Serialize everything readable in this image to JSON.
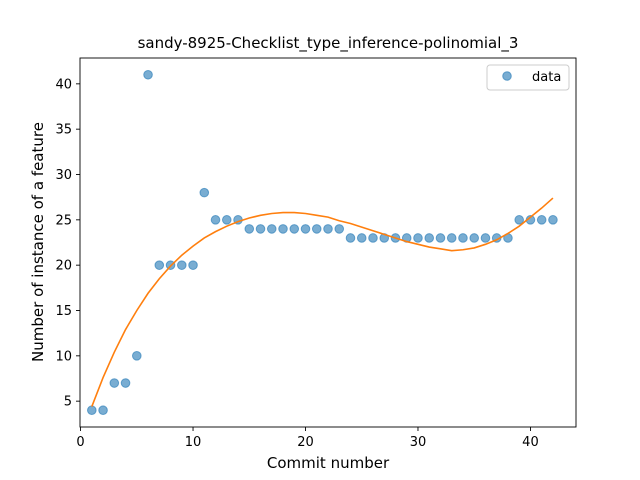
{
  "chart_data": {
    "type": "scatter",
    "title": "sandy-8925-Checklist_type_inference-polinomial_3",
    "xlabel": "Commit number",
    "ylabel": "Number of instance of a feature",
    "xlim": [
      -0.05,
      44.05
    ],
    "ylim": [
      2.15,
      42.85
    ],
    "xticks": [
      0,
      10,
      20,
      30,
      40
    ],
    "yticks": [
      5,
      10,
      15,
      20,
      25,
      30,
      35,
      40
    ],
    "grid": false,
    "legend": {
      "placement": "top-right",
      "entries": [
        "data"
      ]
    },
    "series": [
      {
        "name": "data",
        "type": "scatter",
        "color": "#1f77b4",
        "x": [
          1,
          2,
          3,
          4,
          5,
          6,
          7,
          8,
          9,
          10,
          11,
          12,
          13,
          14,
          15,
          16,
          17,
          18,
          19,
          20,
          21,
          22,
          23,
          24,
          25,
          26,
          27,
          28,
          29,
          30,
          31,
          32,
          33,
          34,
          35,
          36,
          37,
          38,
          39,
          40,
          41,
          42
        ],
        "y": [
          4,
          4,
          7,
          7,
          10,
          41,
          20,
          20,
          20,
          20,
          28,
          25,
          25,
          25,
          24,
          24,
          24,
          24,
          24,
          24,
          24,
          24,
          24,
          23,
          23,
          23,
          23,
          23,
          23,
          23,
          23,
          23,
          23,
          23,
          23,
          23,
          23,
          23,
          25,
          25,
          25,
          25
        ]
      },
      {
        "type": "line",
        "color": "#ff7f0e",
        "x": [
          1,
          2,
          3,
          4,
          5,
          6,
          7,
          8,
          9,
          10,
          11,
          12,
          13,
          14,
          15,
          16,
          17,
          18,
          19,
          20,
          21,
          22,
          23,
          24,
          25,
          26,
          27,
          28,
          29,
          30,
          31,
          32,
          33,
          34,
          35,
          36,
          37,
          38,
          39,
          40,
          41,
          42
        ],
        "y": [
          4.4,
          7.6,
          10.4,
          12.9,
          15.0,
          16.9,
          18.5,
          19.9,
          21.1,
          22.1,
          23.0,
          23.7,
          24.3,
          24.8,
          25.2,
          25.5,
          25.7,
          25.8,
          25.8,
          25.7,
          25.5,
          25.3,
          24.9,
          24.6,
          24.2,
          23.8,
          23.4,
          23.0,
          22.6,
          22.3,
          22.0,
          21.8,
          21.6,
          21.7,
          21.9,
          22.3,
          22.8,
          23.5,
          24.3,
          25.3,
          26.3,
          27.4
        ]
      }
    ]
  }
}
